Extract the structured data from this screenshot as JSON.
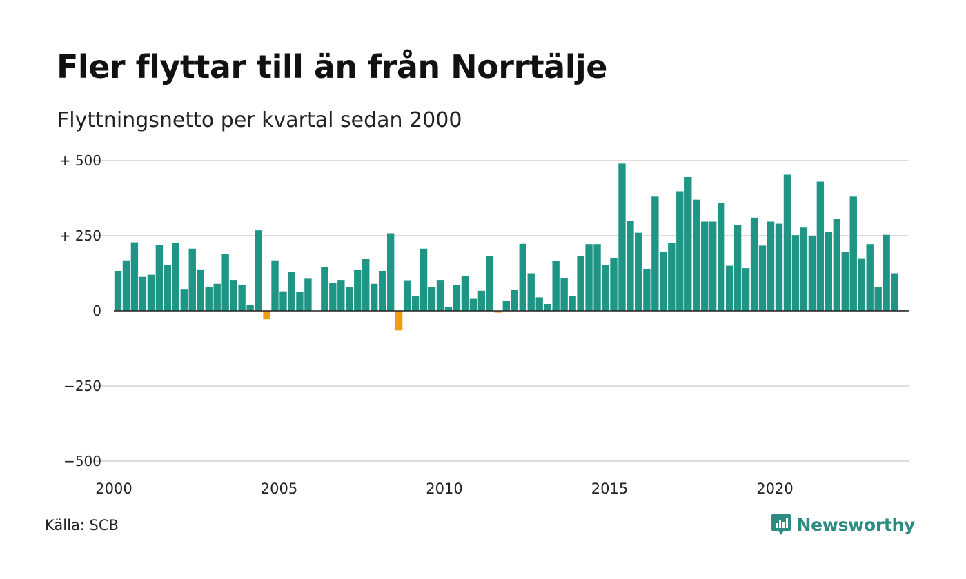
{
  "header": {
    "title": "Fler flyttar till än från Norrtälje",
    "subtitle": "Flyttningsnetto per kvartal sedan 2000"
  },
  "footer": {
    "source": "Källa: SCB",
    "brand": "Newsworthy"
  },
  "colors": {
    "positive": "#1f9585",
    "negative": "#f39c12",
    "grid": "#dddddd",
    "brand": "#2b8c81"
  },
  "chart_data": {
    "type": "bar",
    "title": "Fler flyttar till än från Norrtälje",
    "subtitle": "Flyttningsnetto per kvartal sedan 2000",
    "xlabel": "",
    "ylabel": "",
    "ylim": [
      -500,
      500
    ],
    "y_ticks": [
      {
        "value": 500,
        "label": "+ 500"
      },
      {
        "value": 250,
        "label": "+ 250"
      },
      {
        "value": 0,
        "label": "0"
      },
      {
        "value": -250,
        "label": "−250"
      },
      {
        "value": -500,
        "label": "−500"
      }
    ],
    "x_ticks": [
      {
        "value": 2000,
        "label": "2000"
      },
      {
        "value": 2005,
        "label": "2005"
      },
      {
        "value": 2010,
        "label": "2010"
      },
      {
        "value": 2015,
        "label": "2015"
      },
      {
        "value": 2020,
        "label": "2020"
      }
    ],
    "x_start": "2000 Q1",
    "grid": true,
    "legend": "none",
    "values": [
      133,
      168,
      228,
      113,
      120,
      218,
      152,
      227,
      73,
      207,
      138,
      80,
      90,
      188,
      103,
      87,
      20,
      268,
      -28,
      168,
      65,
      130,
      63,
      107,
      0,
      145,
      93,
      103,
      78,
      137,
      172,
      90,
      133,
      258,
      -65,
      102,
      48,
      207,
      78,
      103,
      12,
      85,
      115,
      40,
      67,
      183,
      -6,
      33,
      70,
      223,
      125,
      45,
      23,
      167,
      110,
      50,
      183,
      222,
      222,
      153,
      175,
      490,
      300,
      260,
      140,
      380,
      197,
      227,
      398,
      445,
      370,
      297,
      297,
      360,
      150,
      285,
      142,
      310,
      217,
      297,
      290,
      453,
      252,
      277,
      250,
      430,
      263,
      307,
      197,
      380,
      173,
      222,
      80,
      253,
      125,
      2
    ]
  }
}
